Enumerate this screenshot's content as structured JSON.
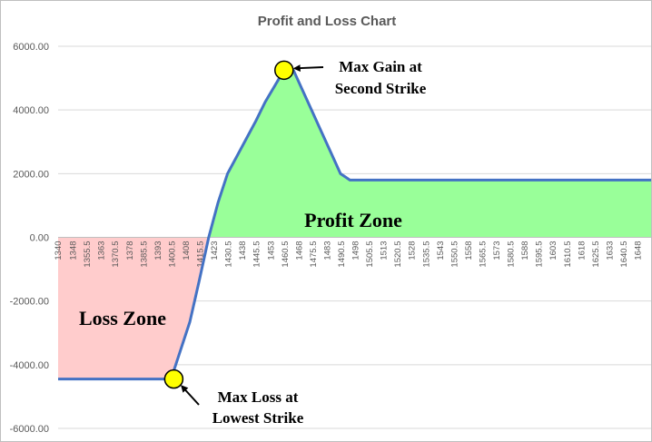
{
  "chart_data": {
    "type": "line",
    "title": "Profit and Loss Chart",
    "x": [
      1340,
      1345,
      1350,
      1355,
      1360,
      1365,
      1370,
      1375,
      1380,
      1385,
      1390,
      1395,
      1400,
      1405,
      1410,
      1415,
      1420,
      1425,
      1430,
      1435,
      1440,
      1445,
      1450,
      1455,
      1460,
      1465,
      1470,
      1475,
      1480,
      1485,
      1490,
      1495,
      1500,
      1655
    ],
    "x_tick_labels": [
      "1340",
      "1348",
      "1355.5",
      "1363",
      "1370.5",
      "1378",
      "1385.5",
      "1393",
      "1400.5",
      "1408",
      "1415.5",
      "1423",
      "1430.5",
      "1438",
      "1445.5",
      "1453",
      "1460.5",
      "1468",
      "1475.5",
      "1483",
      "1490.5",
      "1498",
      "1505.5",
      "1513",
      "1520.5",
      "1528",
      "1535.5",
      "1543",
      "1550.5",
      "1558",
      "1565.5",
      "1573",
      "1580.5",
      "1588",
      "1595.5",
      "1603",
      "1610.5",
      "1618",
      "1625.5",
      "1633",
      "1640.5",
      "1648"
    ],
    "x_range": [
      1340,
      1655
    ],
    "y": [
      -4450,
      -4450,
      -4450,
      -4450,
      -4450,
      -4450,
      -4450,
      -4450,
      -4450,
      -4450,
      -4450,
      -4450,
      -4450,
      -3550,
      -2650,
      -1350,
      0,
      1100,
      2000,
      2550,
      3100,
      3650,
      4250,
      4750,
      5250,
      5250,
      4600,
      3950,
      3300,
      2650,
      2000,
      1800,
      1800,
      1800
    ],
    "ylim": [
      -6000,
      6000
    ],
    "y_ticks": [
      -6000,
      -4000,
      -2000,
      0,
      2000,
      4000,
      6000
    ],
    "y_tick_labels": [
      "-6000.00",
      "-4000.00",
      "-2000.00",
      "0.00",
      "2000.00",
      "4000.00",
      "6000.00"
    ],
    "xlabel": "",
    "ylabel": "",
    "grid": "horizontal",
    "line_color": "#4472c4",
    "profit_fill": "#99ff99",
    "loss_fill": "#ffcccc",
    "marker_color": "#ffff00",
    "zones": {
      "profit": "Profit Zone",
      "loss": "Loss Zone"
    },
    "annotations": [
      {
        "lines": [
          "Max Gain at",
          "Second Strike"
        ],
        "x": 1460,
        "y": 5250
      },
      {
        "lines": [
          "Max Loss at",
          "Lowest Strike"
        ],
        "x": 1400,
        "y": -4450
      }
    ]
  }
}
